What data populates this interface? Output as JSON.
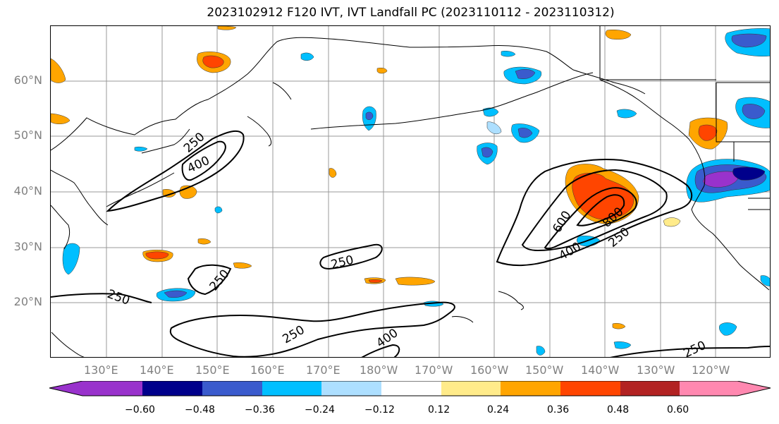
{
  "title": "2023102912 F120 IVT, IVT Landfall PC (2023110112 - 2023110312)",
  "lat_labels": [
    "60°N",
    "50°N",
    "40°N",
    "30°N",
    "20°N"
  ],
  "lon_labels": [
    "130°E",
    "140°E",
    "150°E",
    "160°E",
    "170°E",
    "180°W",
    "170°W",
    "160°W",
    "150°W",
    "140°W",
    "130°W",
    "120°W"
  ],
  "contour_labels": [
    "250",
    "400",
    "250",
    "250",
    "250",
    "400",
    "250",
    "600",
    "800",
    "400",
    "250",
    "250"
  ],
  "colorbar": {
    "ticks": [
      "−0.60",
      "−0.48",
      "−0.36",
      "−0.24",
      "−0.12",
      "0.12",
      "0.24",
      "0.36",
      "0.48",
      "0.60"
    ],
    "colors": [
      "#9932CC",
      "#00008B",
      "#3A5BCD",
      "#00BFFF",
      "#ADDFFF",
      "#FFFFFF",
      "#FFEB8A",
      "#FFA500",
      "#FF4500",
      "#B22222",
      "#FF88B0"
    ]
  }
}
